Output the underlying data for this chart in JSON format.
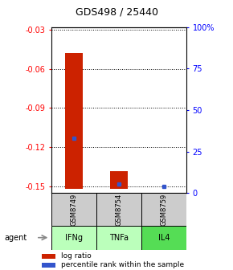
{
  "title": "GDS498 / 25440",
  "samples": [
    "GSM8749",
    "GSM8754",
    "GSM8759"
  ],
  "agents": [
    "IFNg",
    "TNFa",
    "IL4"
  ],
  "log_ratio_bottoms": [
    -0.152,
    -0.152,
    -0.152
  ],
  "log_ratio_tops": [
    -0.048,
    -0.138,
    -0.152
  ],
  "percentile_values": [
    -0.113,
    -0.148,
    -0.15
  ],
  "ylim_left": [
    -0.155,
    -0.028
  ],
  "yticks_left": [
    -0.15,
    -0.12,
    -0.09,
    -0.06,
    -0.03
  ],
  "ytick_labels_left": [
    "-0.15",
    "-0.12",
    "-0.09",
    "-0.06",
    "-0.03"
  ],
  "yticks_right_pct": [
    0,
    25,
    50,
    75,
    100
  ],
  "ytick_labels_right": [
    "0",
    "25",
    "50",
    "75",
    "100%"
  ],
  "ylim_right": [
    0,
    100
  ],
  "bar_color": "#cc2200",
  "dot_color": "#3355cc",
  "agent_colors": [
    "#bbffbb",
    "#bbffbb",
    "#55dd55"
  ],
  "sample_bg": "#cccccc",
  "bar_width": 0.4
}
